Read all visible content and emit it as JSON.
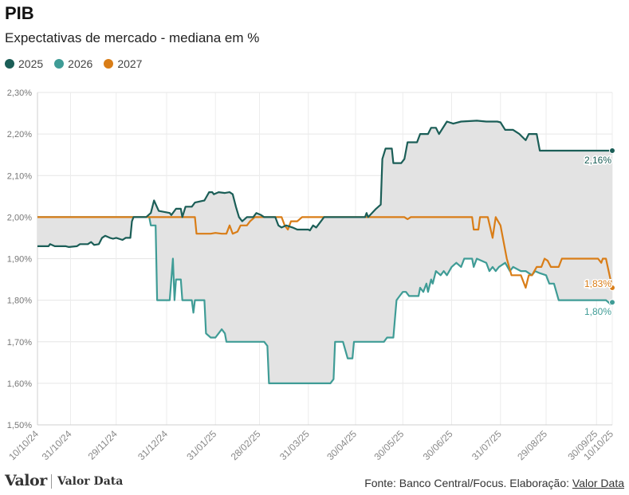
{
  "header": {
    "title": "PIB",
    "subtitle": "Expectativas de mercado - mediana em %"
  },
  "footer": {
    "logo_main": "Valor",
    "logo_secondary": "Valor Data",
    "source_prefix": "Fonte: Banco Central/Focus. Elaboração: ",
    "source_link": "Valor Data"
  },
  "chart_data": {
    "type": "line",
    "title": "PIB",
    "subtitle": "Expectativas de mercado - mediana em %",
    "legend_position": "top-left",
    "grid": true,
    "ylim": [
      1.5,
      2.3
    ],
    "y_ticks": [
      "1,50%",
      "1,60%",
      "1,70%",
      "1,80%",
      "1,90%",
      "2,00%",
      "2,10%",
      "2,20%",
      "2,30%"
    ],
    "y_tick_values": [
      1.5,
      1.6,
      1.7,
      1.8,
      1.9,
      2.0,
      2.1,
      2.2,
      2.3
    ],
    "xlim": [
      "2024-10-10",
      "2025-10-10"
    ],
    "x_ticks": [
      {
        "date": "2024-10-10",
        "label": "10/10/24"
      },
      {
        "date": "2024-10-31",
        "label": "31/10/24"
      },
      {
        "date": "2024-11-29",
        "label": "29/11/24"
      },
      {
        "date": "2024-12-31",
        "label": "31/12/24"
      },
      {
        "date": "2025-01-31",
        "label": "31/01/25"
      },
      {
        "date": "2025-02-28",
        "label": "28/02/25"
      },
      {
        "date": "2025-03-31",
        "label": "31/03/25"
      },
      {
        "date": "2025-04-30",
        "label": "30/04/25"
      },
      {
        "date": "2025-05-30",
        "label": "30/05/25"
      },
      {
        "date": "2025-06-30",
        "label": "30/06/25"
      },
      {
        "date": "2025-07-31",
        "label": "31/07/25"
      },
      {
        "date": "2025-08-29",
        "label": "29/08/25"
      },
      {
        "date": "2025-09-30",
        "label": "30/09/25"
      },
      {
        "date": "2025-10-10",
        "label": "10/10/25"
      }
    ],
    "band": {
      "fill": "#e3e3e3",
      "between": [
        "2025",
        "2026"
      ]
    },
    "series": [
      {
        "name": "2025",
        "color": "#1b5e57",
        "end_label": "2,16%",
        "points": [
          [
            "2024-10-10",
            1.93
          ],
          [
            "2024-10-17",
            1.93
          ],
          [
            "2024-10-18",
            1.935
          ],
          [
            "2024-10-21",
            1.93
          ],
          [
            "2024-10-28",
            1.93
          ],
          [
            "2024-10-30",
            1.928
          ],
          [
            "2024-11-04",
            1.93
          ],
          [
            "2024-11-06",
            1.935
          ],
          [
            "2024-11-11",
            1.935
          ],
          [
            "2024-11-13",
            1.94
          ],
          [
            "2024-11-15",
            1.933
          ],
          [
            "2024-11-18",
            1.935
          ],
          [
            "2024-11-20",
            1.95
          ],
          [
            "2024-11-22",
            1.955
          ],
          [
            "2024-11-25",
            1.95
          ],
          [
            "2024-11-27",
            1.948
          ],
          [
            "2024-11-29",
            1.95
          ],
          [
            "2024-12-03",
            1.945
          ],
          [
            "2024-12-05",
            1.95
          ],
          [
            "2024-12-08",
            1.95
          ],
          [
            "2024-12-09",
            1.99
          ],
          [
            "2024-12-10",
            2.0
          ],
          [
            "2024-12-18",
            2.0
          ],
          [
            "2024-12-21",
            2.01
          ],
          [
            "2024-12-23",
            2.04
          ],
          [
            "2024-12-26",
            2.015
          ],
          [
            "2025-01-02",
            2.01
          ],
          [
            "2025-01-03",
            2.005
          ],
          [
            "2025-01-06",
            2.02
          ],
          [
            "2025-01-09",
            2.02
          ],
          [
            "2025-01-10",
            2.0
          ],
          [
            "2025-01-12",
            2.025
          ],
          [
            "2025-01-16",
            2.025
          ],
          [
            "2025-01-17",
            2.03
          ],
          [
            "2025-01-18",
            2.035
          ],
          [
            "2025-01-24",
            2.04
          ],
          [
            "2025-01-27",
            2.06
          ],
          [
            "2025-01-29",
            2.06
          ],
          [
            "2025-01-30",
            2.055
          ],
          [
            "2025-02-02",
            2.06
          ],
          [
            "2025-02-06",
            2.058
          ],
          [
            "2025-02-09",
            2.06
          ],
          [
            "2025-02-11",
            2.055
          ],
          [
            "2025-02-13",
            2.025
          ],
          [
            "2025-02-15",
            2.0
          ],
          [
            "2025-02-17",
            1.99
          ],
          [
            "2025-02-20",
            2.0
          ],
          [
            "2025-02-24",
            2.0
          ],
          [
            "2025-02-26",
            2.01
          ],
          [
            "2025-03-01",
            2.005
          ],
          [
            "2025-03-03",
            2.0
          ],
          [
            "2025-03-10",
            2.0
          ],
          [
            "2025-03-12",
            1.98
          ],
          [
            "2025-03-14",
            1.975
          ],
          [
            "2025-03-17",
            1.98
          ],
          [
            "2025-03-21",
            1.975
          ],
          [
            "2025-03-24",
            1.97
          ],
          [
            "2025-03-31",
            1.97
          ],
          [
            "2025-04-01",
            1.968
          ],
          [
            "2025-04-03",
            1.98
          ],
          [
            "2025-04-05",
            1.975
          ],
          [
            "2025-04-08",
            1.99
          ],
          [
            "2025-04-10",
            2.0
          ],
          [
            "2025-05-06",
            2.0
          ],
          [
            "2025-05-07",
            2.01
          ],
          [
            "2025-05-08",
            2.0
          ],
          [
            "2025-05-13",
            2.02
          ],
          [
            "2025-05-16",
            2.03
          ],
          [
            "2025-05-17",
            2.14
          ],
          [
            "2025-05-19",
            2.165
          ],
          [
            "2025-05-23",
            2.165
          ],
          [
            "2025-05-24",
            2.13
          ],
          [
            "2025-05-29",
            2.13
          ],
          [
            "2025-05-31",
            2.14
          ],
          [
            "2025-06-02",
            2.18
          ],
          [
            "2025-06-08",
            2.18
          ],
          [
            "2025-06-10",
            2.2
          ],
          [
            "2025-06-15",
            2.2
          ],
          [
            "2025-06-17",
            2.215
          ],
          [
            "2025-06-20",
            2.215
          ],
          [
            "2025-06-22",
            2.2
          ],
          [
            "2025-06-27",
            2.23
          ],
          [
            "2025-07-01",
            2.225
          ],
          [
            "2025-07-06",
            2.23
          ],
          [
            "2025-07-16",
            2.232
          ],
          [
            "2025-07-22",
            2.23
          ],
          [
            "2025-07-29",
            2.23
          ],
          [
            "2025-07-31",
            2.228
          ],
          [
            "2025-08-03",
            2.21
          ],
          [
            "2025-08-08",
            2.21
          ],
          [
            "2025-08-12",
            2.2
          ],
          [
            "2025-08-16",
            2.185
          ],
          [
            "2025-08-18",
            2.2
          ],
          [
            "2025-08-23",
            2.2
          ],
          [
            "2025-08-25",
            2.16
          ],
          [
            "2025-10-10",
            2.16
          ]
        ]
      },
      {
        "name": "2026",
        "color": "#3f9c96",
        "end_label": "1,80%",
        "points": [
          [
            "2024-10-10",
            2.0
          ],
          [
            "2024-12-20",
            2.0
          ],
          [
            "2024-12-21",
            1.98
          ],
          [
            "2024-12-24",
            1.98
          ],
          [
            "2024-12-25",
            1.8
          ],
          [
            "2025-01-02",
            1.8
          ],
          [
            "2025-01-04",
            1.9
          ],
          [
            "2025-01-05",
            1.8
          ],
          [
            "2025-01-06",
            1.85
          ],
          [
            "2025-01-09",
            1.85
          ],
          [
            "2025-01-10",
            1.8
          ],
          [
            "2025-01-16",
            1.8
          ],
          [
            "2025-01-17",
            1.77
          ],
          [
            "2025-01-18",
            1.8
          ],
          [
            "2025-01-24",
            1.8
          ],
          [
            "2025-01-25",
            1.72
          ],
          [
            "2025-01-28",
            1.71
          ],
          [
            "2025-01-31",
            1.71
          ],
          [
            "2025-02-02",
            1.72
          ],
          [
            "2025-02-04",
            1.73
          ],
          [
            "2025-02-06",
            1.72
          ],
          [
            "2025-02-07",
            1.7
          ],
          [
            "2025-03-03",
            1.7
          ],
          [
            "2025-03-05",
            1.69
          ],
          [
            "2025-03-06",
            1.6
          ],
          [
            "2025-04-14",
            1.6
          ],
          [
            "2025-04-16",
            1.61
          ],
          [
            "2025-04-17",
            1.7
          ],
          [
            "2025-04-22",
            1.7
          ],
          [
            "2025-04-25",
            1.66
          ],
          [
            "2025-04-28",
            1.66
          ],
          [
            "2025-04-29",
            1.7
          ],
          [
            "2025-05-13",
            1.7
          ],
          [
            "2025-05-18",
            1.7
          ],
          [
            "2025-05-20",
            1.71
          ],
          [
            "2025-05-24",
            1.71
          ],
          [
            "2025-05-26",
            1.8
          ],
          [
            "2025-05-28",
            1.81
          ],
          [
            "2025-05-30",
            1.82
          ],
          [
            "2025-06-01",
            1.82
          ],
          [
            "2025-06-03",
            1.81
          ],
          [
            "2025-06-09",
            1.81
          ],
          [
            "2025-06-10",
            1.83
          ],
          [
            "2025-06-12",
            1.82
          ],
          [
            "2025-06-14",
            1.84
          ],
          [
            "2025-06-15",
            1.82
          ],
          [
            "2025-06-17",
            1.85
          ],
          [
            "2025-06-18",
            1.84
          ],
          [
            "2025-06-20",
            1.87
          ],
          [
            "2025-06-23",
            1.86
          ],
          [
            "2025-06-25",
            1.87
          ],
          [
            "2025-06-27",
            1.86
          ],
          [
            "2025-06-30",
            1.88
          ],
          [
            "2025-07-03",
            1.89
          ],
          [
            "2025-07-06",
            1.88
          ],
          [
            "2025-07-08",
            1.9
          ],
          [
            "2025-07-13",
            1.9
          ],
          [
            "2025-07-14",
            1.88
          ],
          [
            "2025-07-16",
            1.9
          ],
          [
            "2025-07-22",
            1.89
          ],
          [
            "2025-07-24",
            1.87
          ],
          [
            "2025-07-26",
            1.88
          ],
          [
            "2025-07-28",
            1.87
          ],
          [
            "2025-07-30",
            1.88
          ],
          [
            "2025-08-03",
            1.89
          ],
          [
            "2025-08-06",
            1.87
          ],
          [
            "2025-08-08",
            1.88
          ],
          [
            "2025-08-13",
            1.87
          ],
          [
            "2025-08-16",
            1.87
          ],
          [
            "2025-08-20",
            1.86
          ],
          [
            "2025-08-22",
            1.87
          ],
          [
            "2025-08-25",
            1.865
          ],
          [
            "2025-08-29",
            1.86
          ],
          [
            "2025-08-31",
            1.84
          ],
          [
            "2025-09-03",
            1.84
          ],
          [
            "2025-09-06",
            1.8
          ],
          [
            "2025-10-06",
            1.8
          ],
          [
            "2025-10-09",
            1.79
          ],
          [
            "2025-10-10",
            1.795
          ]
        ]
      },
      {
        "name": "2027",
        "color": "#d97d17",
        "end_label": "1,83%",
        "points": [
          [
            "2024-10-10",
            2.0
          ],
          [
            "2025-01-18",
            2.0
          ],
          [
            "2025-01-19",
            1.96
          ],
          [
            "2025-01-28",
            1.96
          ],
          [
            "2025-01-31",
            1.962
          ],
          [
            "2025-02-04",
            1.96
          ],
          [
            "2025-02-07",
            1.96
          ],
          [
            "2025-02-09",
            1.98
          ],
          [
            "2025-02-11",
            1.96
          ],
          [
            "2025-02-14",
            1.965
          ],
          [
            "2025-02-16",
            1.98
          ],
          [
            "2025-02-20",
            1.98
          ],
          [
            "2025-02-22",
            1.99
          ],
          [
            "2025-02-25",
            2.0
          ],
          [
            "2025-03-14",
            2.0
          ],
          [
            "2025-03-16",
            1.98
          ],
          [
            "2025-03-18",
            1.97
          ],
          [
            "2025-03-20",
            1.99
          ],
          [
            "2025-03-24",
            1.99
          ],
          [
            "2025-03-27",
            2.0
          ],
          [
            "2025-05-31",
            2.0
          ],
          [
            "2025-06-02",
            1.995
          ],
          [
            "2025-06-04",
            2.0
          ],
          [
            "2025-07-13",
            2.0
          ],
          [
            "2025-07-14",
            1.97
          ],
          [
            "2025-07-17",
            1.97
          ],
          [
            "2025-07-18",
            2.0
          ],
          [
            "2025-07-23",
            2.0
          ],
          [
            "2025-07-26",
            1.95
          ],
          [
            "2025-07-28",
            2.0
          ],
          [
            "2025-07-31",
            1.98
          ],
          [
            "2025-08-04",
            1.9
          ],
          [
            "2025-08-07",
            1.86
          ],
          [
            "2025-08-13",
            1.86
          ],
          [
            "2025-08-16",
            1.83
          ],
          [
            "2025-08-18",
            1.86
          ],
          [
            "2025-08-20",
            1.86
          ],
          [
            "2025-08-23",
            1.88
          ],
          [
            "2025-08-26",
            1.88
          ],
          [
            "2025-08-28",
            1.9
          ],
          [
            "2025-08-30",
            1.895
          ],
          [
            "2025-09-01",
            1.88
          ],
          [
            "2025-09-06",
            1.88
          ],
          [
            "2025-09-08",
            1.9
          ],
          [
            "2025-09-12",
            1.9
          ],
          [
            "2025-10-01",
            1.9
          ],
          [
            "2025-10-03",
            1.89
          ],
          [
            "2025-10-04",
            1.9
          ],
          [
            "2025-10-06",
            1.9
          ],
          [
            "2025-10-10",
            1.83
          ]
        ]
      }
    ]
  }
}
